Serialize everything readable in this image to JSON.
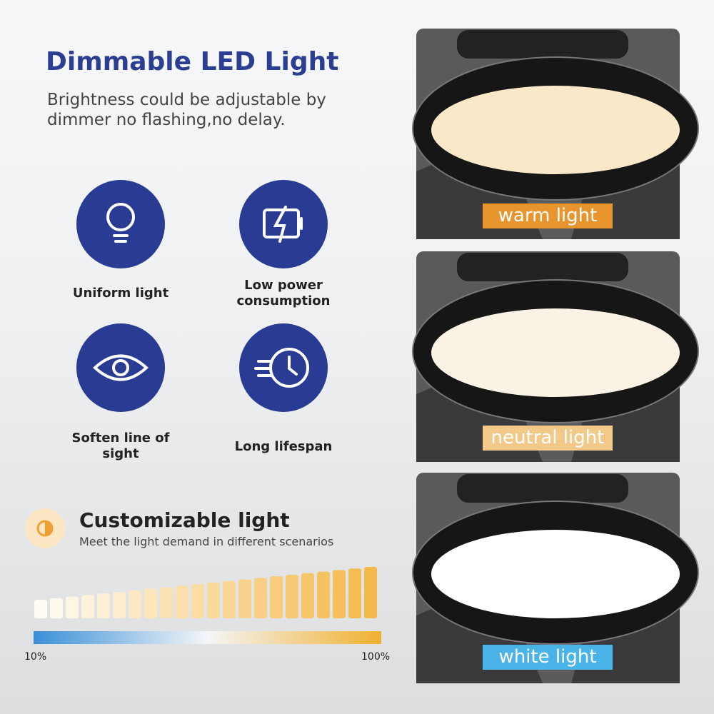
{
  "header": {
    "title": "Dimmable LED Light",
    "subtitle": "Brightness could be adjustable by dimmer no flashing,no delay."
  },
  "features": [
    {
      "label": "Uniform light"
    },
    {
      "label": "Low power consumption"
    },
    {
      "label": "Soften line of sight"
    },
    {
      "label": "Long lifespan"
    }
  ],
  "customizable": {
    "title": "Customizable light",
    "subtitle": "Meet the light demand in different scenarios",
    "scale_min_label": "10%",
    "scale_max_label": "100%"
  },
  "panels": [
    {
      "label": "warm light"
    },
    {
      "label": "neutral light"
    },
    {
      "label": "white light"
    }
  ]
}
